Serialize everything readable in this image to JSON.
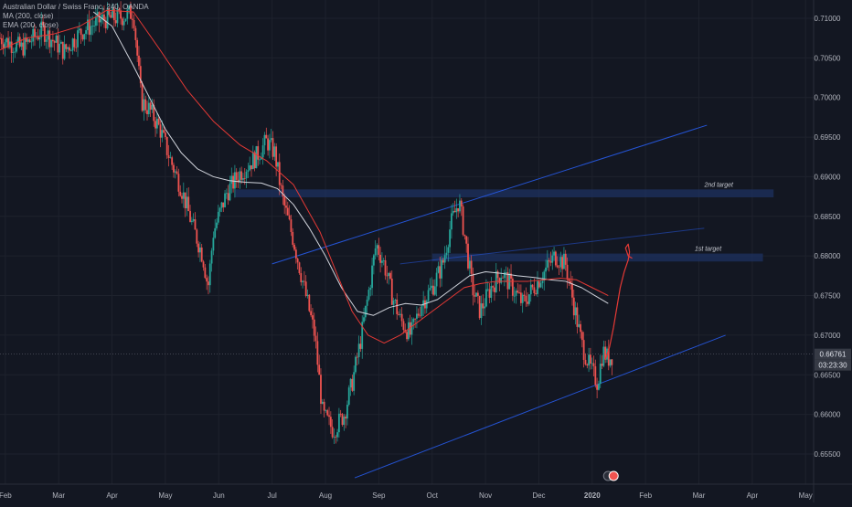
{
  "symbol_title": "Australian Dollar / Swiss Franc, 240, OANDA",
  "indicators": [
    {
      "label": "MA (200, close)"
    },
    {
      "label": "EMA (200, close)"
    }
  ],
  "colors": {
    "background": "#131722",
    "grid": "#1e222d",
    "up_candle": "#26a69a",
    "down_candle": "#ef5350",
    "ma_line": "#d1d4dc",
    "ema_line": "#e53935",
    "channel_line": "#2962ff",
    "target_zone": "#1e3160",
    "projection_path": "#e53935",
    "price_tag_bg": "#363a45"
  },
  "chart_data": {
    "type": "candlestick",
    "title": "Australian Dollar / Swiss Franc, 240, OANDA",
    "x_ticks": [
      "Feb",
      "Mar",
      "Apr",
      "May",
      "Jun",
      "Jul",
      "Aug",
      "Sep",
      "Oct",
      "Nov",
      "Dec",
      "2020",
      "Feb",
      "Mar",
      "Apr",
      "May"
    ],
    "y_ticks": [
      0.71,
      0.705,
      0.7,
      0.695,
      0.69,
      0.685,
      0.68,
      0.675,
      0.67,
      0.665,
      0.66,
      0.655
    ],
    "y_tick_labels": [
      "0.71000",
      "0.70500",
      "0.70000",
      "0.69500",
      "0.69000",
      "0.68500",
      "0.68000",
      "0.67500",
      "0.67000",
      "0.66500",
      "0.66000",
      "0.65500"
    ],
    "ylim": [
      0.6512,
      0.7123
    ],
    "last_price": 0.66761,
    "last_price_label": "0.66761",
    "countdown_label": "03:23:30",
    "price_path": [
      [
        0.0,
        0.7075
      ],
      [
        0.8,
        0.7062
      ],
      [
        1.6,
        0.7085
      ],
      [
        2.4,
        0.7058
      ],
      [
        3.0,
        0.7082
      ],
      [
        3.8,
        0.7098
      ],
      [
        4.6,
        0.7102
      ],
      [
        5.0,
        0.7108
      ],
      [
        5.3,
        0.6995
      ],
      [
        5.6,
        0.6985
      ],
      [
        6.0,
        0.696
      ],
      [
        6.4,
        0.692
      ],
      [
        6.8,
        0.6885
      ],
      [
        7.2,
        0.684
      ],
      [
        7.6,
        0.68
      ],
      [
        7.8,
        0.676
      ],
      [
        8.0,
        0.683
      ],
      [
        8.5,
        0.688
      ],
      [
        9.0,
        0.6905
      ],
      [
        9.6,
        0.6925
      ],
      [
        10.0,
        0.6945
      ],
      [
        10.3,
        0.693
      ],
      [
        10.6,
        0.687
      ],
      [
        11.0,
        0.682
      ],
      [
        11.4,
        0.676
      ],
      [
        11.8,
        0.67
      ],
      [
        12.1,
        0.66
      ],
      [
        12.5,
        0.658
      ],
      [
        12.9,
        0.66
      ],
      [
        13.2,
        0.664
      ],
      [
        13.5,
        0.669
      ],
      [
        13.8,
        0.675
      ],
      [
        14.1,
        0.6815
      ],
      [
        14.4,
        0.679
      ],
      [
        14.7,
        0.675
      ],
      [
        15.0,
        0.672
      ],
      [
        15.4,
        0.67
      ],
      [
        15.8,
        0.674
      ],
      [
        16.2,
        0.676
      ],
      [
        16.6,
        0.679
      ],
      [
        16.9,
        0.684
      ],
      [
        17.2,
        0.687
      ],
      [
        17.4,
        0.683
      ],
      [
        17.7,
        0.676
      ],
      [
        18.0,
        0.673
      ],
      [
        18.4,
        0.676
      ],
      [
        18.8,
        0.678
      ],
      [
        19.2,
        0.676
      ],
      [
        19.6,
        0.674
      ],
      [
        20.0,
        0.676
      ],
      [
        20.4,
        0.678
      ],
      [
        20.8,
        0.68
      ],
      [
        21.2,
        0.679
      ],
      [
        21.5,
        0.674
      ],
      [
        21.8,
        0.669
      ],
      [
        22.1,
        0.666
      ],
      [
        22.4,
        0.664
      ],
      [
        22.6,
        0.668
      ],
      [
        22.8,
        0.667
      ],
      [
        23.0,
        0.66761
      ]
    ],
    "ma_200": [
      [
        3.5,
        0.7108
      ],
      [
        4.2,
        0.709
      ],
      [
        5.0,
        0.704
      ],
      [
        5.6,
        0.7
      ],
      [
        6.2,
        0.696
      ],
      [
        6.8,
        0.693
      ],
      [
        7.4,
        0.691
      ],
      [
        8.0,
        0.69
      ],
      [
        8.6,
        0.6895
      ],
      [
        9.2,
        0.6893
      ],
      [
        9.8,
        0.6892
      ],
      [
        10.4,
        0.6885
      ],
      [
        11.0,
        0.6865
      ],
      [
        11.6,
        0.6835
      ],
      [
        12.2,
        0.68
      ],
      [
        12.8,
        0.676
      ],
      [
        13.4,
        0.673
      ],
      [
        14.0,
        0.6725
      ],
      [
        14.6,
        0.6735
      ],
      [
        15.2,
        0.674
      ],
      [
        15.8,
        0.6738
      ],
      [
        16.4,
        0.6745
      ],
      [
        17.0,
        0.676
      ],
      [
        17.6,
        0.6775
      ],
      [
        18.2,
        0.678
      ],
      [
        18.8,
        0.6778
      ],
      [
        19.4,
        0.6775
      ],
      [
        20.0,
        0.6773
      ],
      [
        20.6,
        0.677
      ],
      [
        21.2,
        0.6768
      ],
      [
        21.8,
        0.676
      ],
      [
        22.3,
        0.675
      ],
      [
        22.8,
        0.674
      ]
    ],
    "ema_200": [
      [
        0.0,
        0.706
      ],
      [
        1.0,
        0.7075
      ],
      [
        2.0,
        0.708
      ],
      [
        3.0,
        0.709
      ],
      [
        4.0,
        0.711
      ],
      [
        5.0,
        0.7108
      ],
      [
        6.0,
        0.706
      ],
      [
        7.0,
        0.701
      ],
      [
        8.0,
        0.697
      ],
      [
        9.0,
        0.694
      ],
      [
        10.0,
        0.692
      ],
      [
        11.0,
        0.689
      ],
      [
        12.0,
        0.683
      ],
      [
        12.6,
        0.678
      ],
      [
        13.2,
        0.673
      ],
      [
        13.8,
        0.67
      ],
      [
        14.4,
        0.669
      ],
      [
        15.0,
        0.67
      ],
      [
        15.6,
        0.6715
      ],
      [
        16.2,
        0.673
      ],
      [
        16.8,
        0.6745
      ],
      [
        17.4,
        0.676
      ],
      [
        18.0,
        0.6765
      ],
      [
        18.6,
        0.6768
      ],
      [
        19.2,
        0.6768
      ],
      [
        19.8,
        0.6768
      ],
      [
        20.4,
        0.677
      ],
      [
        21.0,
        0.6772
      ],
      [
        21.6,
        0.677
      ],
      [
        22.2,
        0.676
      ],
      [
        22.8,
        0.675
      ]
    ],
    "channel_upper": [
      [
        10.2,
        0.679
      ],
      [
        26.5,
        0.6965
      ]
    ],
    "channel_mid": [
      [
        15.0,
        0.679
      ],
      [
        26.4,
        0.6835
      ]
    ],
    "channel_lower": [
      [
        13.3,
        0.652
      ],
      [
        27.2,
        0.67
      ]
    ],
    "zones": [
      {
        "label": "2nd target",
        "x0": 8.8,
        "x1": 29.0,
        "y0": 0.6874,
        "y1": 0.6884
      },
      {
        "label": "1st target",
        "x0": 16.2,
        "x1": 28.6,
        "y0": 0.6793,
        "y1": 0.6803
      }
    ],
    "projection": [
      [
        22.7,
        0.667
      ],
      [
        22.85,
        0.6685
      ],
      [
        23.0,
        0.671
      ],
      [
        23.15,
        0.674
      ],
      [
        23.25,
        0.676
      ],
      [
        23.4,
        0.678
      ],
      [
        23.55,
        0.6795
      ],
      [
        23.6,
        0.6805
      ],
      [
        23.55,
        0.6815
      ],
      [
        23.45,
        0.681
      ],
      [
        23.55,
        0.68
      ],
      [
        23.7,
        0.6797
      ]
    ]
  }
}
